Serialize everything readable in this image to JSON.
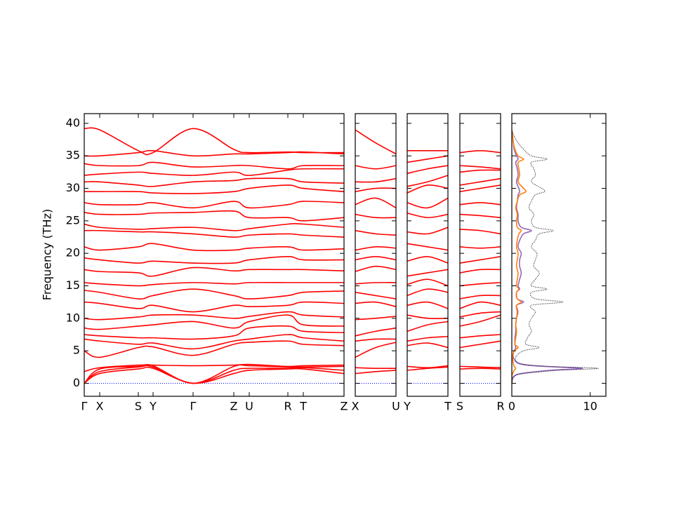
{
  "chart_data": [
    {
      "type": "line",
      "ylabel": "Frequency (THz)",
      "color": "#ff0000",
      "ylim": [
        -2,
        41.5
      ],
      "yticks": [
        0,
        5,
        10,
        15,
        20,
        25,
        30,
        35,
        40
      ],
      "xlim": [
        0,
        3.7
      ],
      "xticks": [
        {
          "value": 0,
          "label": "Γ"
        },
        {
          "value": 0.22,
          "label": "X"
        },
        {
          "value": 0.77,
          "label": "S"
        },
        {
          "value": 0.98,
          "label": "Y"
        },
        {
          "value": 1.55,
          "label": "Γ"
        },
        {
          "value": 2.13,
          "label": "Z"
        },
        {
          "value": 2.35,
          "label": "U"
        },
        {
          "value": 2.9,
          "label": "R"
        },
        {
          "value": 3.12,
          "label": "T"
        },
        {
          "value": 3.7,
          "label": "Z"
        }
      ],
      "x": [
        0,
        0.22,
        0.77,
        0.98,
        1.55,
        2.13,
        2.35,
        2.9,
        3.12,
        3.7
      ],
      "hline": 0,
      "hline_color": "#0000ff",
      "series": [
        {
          "values": [
            0,
            1.5,
            2.2,
            2.3,
            0,
            1.5,
            2.0,
            2.2,
            2.2,
            1.5
          ]
        },
        {
          "values": [
            0,
            1.8,
            2.5,
            2.5,
            0,
            2.0,
            2.3,
            2.3,
            2.4,
            2.0
          ]
        },
        {
          "values": [
            0,
            2.2,
            2.6,
            2.7,
            0,
            2.6,
            2.7,
            2.5,
            2.5,
            2.6
          ]
        },
        {
          "values": [
            1.8,
            2.4,
            2.8,
            2.8,
            2.7,
            2.8,
            2.9,
            2.6,
            2.7,
            2.8
          ]
        },
        {
          "values": [
            5.0,
            4.0,
            5.5,
            5.6,
            4.3,
            6.0,
            6.3,
            6.5,
            6.0,
            5.8
          ]
        },
        {
          "values": [
            6.8,
            6.5,
            6.0,
            6.2,
            5.3,
            6.5,
            6.8,
            7.5,
            7.0,
            6.5
          ]
        },
        {
          "values": [
            7.5,
            7.3,
            7.0,
            7.0,
            6.8,
            7.3,
            8.5,
            8.8,
            8.0,
            7.8
          ]
        },
        {
          "values": [
            8.5,
            8.3,
            8.8,
            9.0,
            9.5,
            8.5,
            9.5,
            10.5,
            9.0,
            8.8
          ]
        },
        {
          "values": [
            10.0,
            9.8,
            10.2,
            10.5,
            10.5,
            10.0,
            10.3,
            11.0,
            10.5,
            10.2
          ]
        },
        {
          "values": [
            12.5,
            12.3,
            11.5,
            12.0,
            11.0,
            12.0,
            11.8,
            12.0,
            12.5,
            12.3
          ]
        },
        {
          "values": [
            14.3,
            14.0,
            13.0,
            13.5,
            14.5,
            13.5,
            13.0,
            13.5,
            14.0,
            14.2
          ]
        },
        {
          "values": [
            15.5,
            15.3,
            15.0,
            15.2,
            15.5,
            15.3,
            15.5,
            15.5,
            15.5,
            15.5
          ]
        },
        {
          "values": [
            17.5,
            17.2,
            17.0,
            16.5,
            17.8,
            17.3,
            17.5,
            17.5,
            17.5,
            17.3
          ]
        },
        {
          "values": [
            19.3,
            19.0,
            18.5,
            18.8,
            18.5,
            18.5,
            19.0,
            19.5,
            19.0,
            19.0
          ]
        },
        {
          "values": [
            21.0,
            20.5,
            21.0,
            21.5,
            20.5,
            20.5,
            20.8,
            21.0,
            20.5,
            20.7
          ]
        },
        {
          "values": [
            23.5,
            23.5,
            23.3,
            23.3,
            23.0,
            22.5,
            22.8,
            23.0,
            22.8,
            22.5
          ]
        },
        {
          "values": [
            24.5,
            24.0,
            23.7,
            23.8,
            24.0,
            23.5,
            23.8,
            24.5,
            24.5,
            24.0
          ]
        },
        {
          "values": [
            26.3,
            26.0,
            26.0,
            26.2,
            26.3,
            26.5,
            25.5,
            25.5,
            25.0,
            25.5
          ]
        },
        {
          "values": [
            27.8,
            27.5,
            27.5,
            27.8,
            27.0,
            28.0,
            27.0,
            27.5,
            28.0,
            27.8
          ]
        },
        {
          "values": [
            29.5,
            29.5,
            29.5,
            29.3,
            29.2,
            29.5,
            30.0,
            30.5,
            30.0,
            29.5
          ]
        },
        {
          "values": [
            31.0,
            31.0,
            30.5,
            30.3,
            31.0,
            31.2,
            31.5,
            31.5,
            31.0,
            30.8
          ]
        },
        {
          "values": [
            32.0,
            32.2,
            32.5,
            32.3,
            32.0,
            32.5,
            32.0,
            32.8,
            33.0,
            33.0
          ]
        },
        {
          "values": [
            33.8,
            33.5,
            33.5,
            34.0,
            33.3,
            33.5,
            33.5,
            33.0,
            33.5,
            33.5
          ]
        },
        {
          "values": [
            35.0,
            35.0,
            35.5,
            35.8,
            35.0,
            35.3,
            35.3,
            35.5,
            35.6,
            35.3
          ]
        },
        {
          "values": [
            39.2,
            39.0,
            35.8,
            35.5,
            39.2,
            36.0,
            35.5,
            35.6,
            35.5,
            35.5
          ]
        }
      ]
    },
    {
      "type": "line",
      "color": "#ff0000",
      "xlim": [
        0,
        1
      ],
      "xticks": [
        {
          "value": 0,
          "label": "X"
        },
        {
          "value": 1,
          "label": "U"
        }
      ],
      "x": [
        0,
        0.5,
        1
      ],
      "hline": 0,
      "hline_color": "#0000ff",
      "series": [
        {
          "values": [
            1.5,
            1.8,
            2.0
          ]
        },
        {
          "values": [
            2.4,
            2.3,
            2.3
          ]
        },
        {
          "values": [
            4.0,
            5.5,
            6.3
          ]
        },
        {
          "values": [
            6.5,
            6.8,
            6.8
          ]
        },
        {
          "values": [
            7.3,
            8.0,
            8.5
          ]
        },
        {
          "values": [
            9.8,
            10.0,
            10.3
          ]
        },
        {
          "values": [
            12.3,
            12.5,
            11.8
          ]
        },
        {
          "values": [
            14.0,
            13.5,
            13.0
          ]
        },
        {
          "values": [
            15.3,
            15.5,
            15.5
          ]
        },
        {
          "values": [
            17.2,
            18.0,
            17.5
          ]
        },
        {
          "values": [
            19.0,
            19.5,
            19.0
          ]
        },
        {
          "values": [
            20.5,
            21.0,
            20.8
          ]
        },
        {
          "values": [
            23.5,
            23.0,
            22.8
          ]
        },
        {
          "values": [
            26.0,
            25.5,
            25.5
          ]
        },
        {
          "values": [
            27.5,
            28.5,
            27.0
          ]
        },
        {
          "values": [
            29.5,
            30.0,
            30.0
          ]
        },
        {
          "values": [
            31.0,
            31.0,
            31.5
          ]
        },
        {
          "values": [
            33.5,
            33.0,
            33.5
          ]
        },
        {
          "values": [
            39.0,
            37.0,
            35.3
          ]
        }
      ]
    },
    {
      "type": "line",
      "color": "#ff0000",
      "xlim": [
        0,
        1
      ],
      "xticks": [
        {
          "value": 0,
          "label": "Y"
        },
        {
          "value": 1,
          "label": "T"
        }
      ],
      "x": [
        0,
        0.5,
        1
      ],
      "hline": 0,
      "hline_color": "#0000ff",
      "series": [
        {
          "values": [
            2.0,
            2.3,
            2.5
          ]
        },
        {
          "values": [
            2.6,
            2.4,
            2.7
          ]
        },
        {
          "values": [
            5.8,
            6.2,
            5.5
          ]
        },
        {
          "values": [
            6.5,
            7.0,
            7.2
          ]
        },
        {
          "values": [
            8.0,
            9.0,
            9.5
          ]
        },
        {
          "values": [
            10.5,
            10.0,
            10.0
          ]
        },
        {
          "values": [
            12.0,
            12.5,
            11.5
          ]
        },
        {
          "values": [
            13.5,
            14.5,
            14.0
          ]
        },
        {
          "values": [
            15.2,
            16.0,
            15.0
          ]
        },
        {
          "values": [
            16.5,
            17.0,
            17.5
          ]
        },
        {
          "values": [
            18.8,
            19.5,
            18.5
          ]
        },
        {
          "values": [
            21.5,
            21.0,
            20.5
          ]
        },
        {
          "values": [
            23.3,
            23.0,
            24.0
          ]
        },
        {
          "values": [
            26.2,
            25.5,
            26.0
          ]
        },
        {
          "values": [
            27.8,
            27.0,
            28.5
          ]
        },
        {
          "values": [
            29.3,
            30.5,
            30.0
          ]
        },
        {
          "values": [
            30.3,
            31.0,
            32.0
          ]
        },
        {
          "values": [
            32.3,
            33.0,
            33.5
          ]
        },
        {
          "values": [
            34.0,
            34.5,
            35.0
          ]
        },
        {
          "values": [
            35.8,
            35.8,
            35.8
          ]
        }
      ]
    },
    {
      "type": "line",
      "color": "#ff0000",
      "xlim": [
        0,
        1
      ],
      "xticks": [
        {
          "value": 0,
          "label": "S"
        },
        {
          "value": 1,
          "label": "R"
        }
      ],
      "x": [
        0,
        0.5,
        1
      ],
      "hline": 0,
      "hline_color": "#0000ff",
      "series": [
        {
          "values": [
            2.2,
            2.3,
            2.2
          ]
        },
        {
          "values": [
            2.6,
            2.5,
            2.4
          ]
        },
        {
          "values": [
            5.5,
            6.0,
            6.5
          ]
        },
        {
          "values": [
            7.0,
            7.3,
            7.5
          ]
        },
        {
          "values": [
            8.8,
            9.5,
            10.5
          ]
        },
        {
          "values": [
            10.2,
            10.8,
            11.0
          ]
        },
        {
          "values": [
            11.5,
            12.5,
            12.0
          ]
        },
        {
          "values": [
            13.0,
            13.5,
            13.5
          ]
        },
        {
          "values": [
            15.0,
            15.3,
            15.5
          ]
        },
        {
          "values": [
            17.0,
            17.5,
            17.5
          ]
        },
        {
          "values": [
            18.5,
            19.0,
            19.5
          ]
        },
        {
          "values": [
            21.0,
            20.8,
            21.0
          ]
        },
        {
          "values": [
            23.7,
            23.5,
            23.0
          ]
        },
        {
          "values": [
            26.0,
            25.8,
            25.5
          ]
        },
        {
          "values": [
            27.5,
            27.8,
            27.5
          ]
        },
        {
          "values": [
            29.5,
            30.0,
            30.5
          ]
        },
        {
          "values": [
            30.5,
            31.0,
            31.5
          ]
        },
        {
          "values": [
            32.5,
            32.8,
            32.8
          ]
        },
        {
          "values": [
            33.5,
            33.3,
            33.0
          ]
        },
        {
          "values": [
            35.5,
            35.8,
            35.5
          ]
        }
      ]
    },
    {
      "type": "line",
      "orientation": "horizontal",
      "xlim": [
        0,
        12
      ],
      "xticks": [
        0,
        10
      ],
      "y": [
        0,
        1,
        1.5,
        2,
        2.3,
        2.6,
        3,
        4,
        5,
        5.5,
        6,
        7,
        8,
        9,
        10,
        11,
        12,
        12.5,
        13,
        14,
        14.5,
        15,
        16,
        17,
        18,
        19,
        20,
        21,
        22,
        23,
        23.5,
        24,
        25,
        26,
        27,
        28,
        29,
        29.5,
        30,
        31,
        32,
        33,
        34,
        34.5,
        35,
        36,
        37,
        38,
        39
      ],
      "series": [
        {
          "color": "#9467bd",
          "linestyle": "solid",
          "values": [
            0,
            0.2,
            1.2,
            5,
            9,
            4,
            1,
            0.2,
            0.3,
            0.5,
            0.4,
            0.4,
            0.5,
            0.5,
            0.6,
            0.7,
            0.6,
            1.5,
            0.7,
            0.6,
            1,
            0.8,
            1,
            1.2,
            1,
            1,
            1.2,
            0.8,
            1,
            1.5,
            2.5,
            1.2,
            0.8,
            0.8,
            0.6,
            0.7,
            0.8,
            1,
            0.9,
            0.6,
            0.8,
            0.7,
            0.5,
            0.8,
            0.6,
            0.3,
            0.2,
            0.1,
            0
          ]
        },
        {
          "color": "#ff7f0e",
          "linestyle": "solid",
          "values": [
            0,
            0,
            0.1,
            0.3,
            0.5,
            0.3,
            0.2,
            0.1,
            0.3,
            0.8,
            0.4,
            0.5,
            0.6,
            0.5,
            0.6,
            0.8,
            0.6,
            1.2,
            0.7,
            0.6,
            0.9,
            0.6,
            0.7,
            0.8,
            0.6,
            0.7,
            0.8,
            0.6,
            0.7,
            0.9,
            1.2,
            0.7,
            0.6,
            0.7,
            0.5,
            0.7,
            1,
            1.8,
            1.5,
            0.8,
            1,
            0.9,
            0.8,
            1.5,
            0.8,
            0.4,
            0.2,
            0.1,
            0
          ]
        },
        {
          "color": "#000000",
          "linestyle": "dotted",
          "values": [
            0,
            0.3,
            1.5,
            6,
            11,
            5,
            1.2,
            0.5,
            1.5,
            3.5,
            1.8,
            2,
            2.5,
            2.2,
            2.5,
            3,
            2.5,
            6.5,
            3,
            2.5,
            4.5,
            2.5,
            3,
            3.5,
            2.8,
            3,
            3.2,
            2.5,
            3,
            3.5,
            5.3,
            3,
            2.5,
            2.8,
            2.2,
            2.5,
            3,
            4.2,
            3.8,
            2.5,
            3,
            2.8,
            2.5,
            4.5,
            2.5,
            1.5,
            0.8,
            0.3,
            0
          ]
        }
      ]
    }
  ]
}
